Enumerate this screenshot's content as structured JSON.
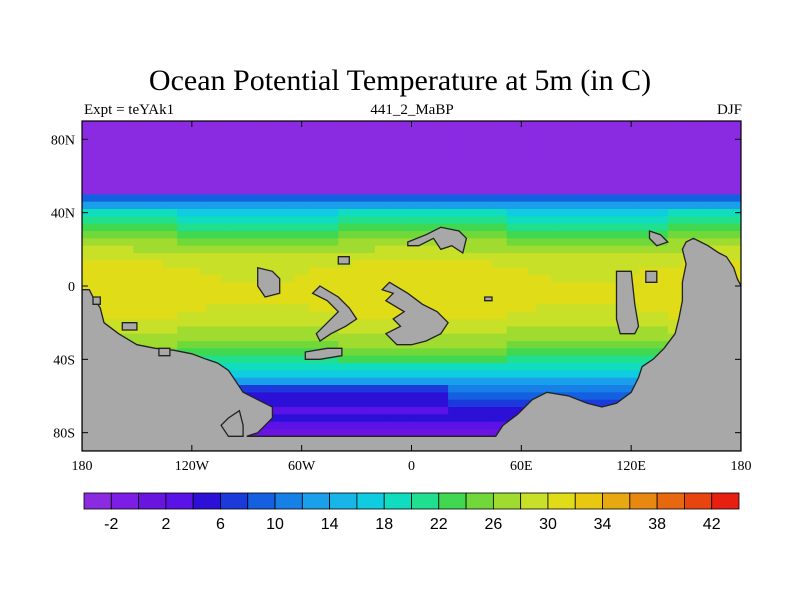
{
  "chart_data": {
    "type": "heatmap",
    "title": "Ocean Potential Temperature at 5m (in C)",
    "left_string": "Expt = teYAk1",
    "center_string": "441_2_MaBP",
    "right_string": "DJF",
    "x_ticks": [
      "180",
      "120W",
      "60W",
      "0",
      "60E",
      "120E",
      "180"
    ],
    "x_tick_values": [
      -180,
      -120,
      -60,
      0,
      60,
      120,
      180
    ],
    "y_ticks": [
      "80N",
      "40N",
      "0",
      "40S",
      "80S"
    ],
    "y_tick_values": [
      80,
      40,
      0,
      -40,
      -80
    ],
    "xlim": [
      -180,
      180
    ],
    "ylim": [
      -90,
      90
    ],
    "colorbar": {
      "levels": [
        -4,
        -2,
        0,
        2,
        4,
        6,
        8,
        10,
        12,
        14,
        16,
        18,
        20,
        22,
        24,
        26,
        28,
        30,
        32,
        34,
        36,
        38,
        40,
        42,
        44
      ],
      "labels": [
        "-2",
        "2",
        "6",
        "10",
        "14",
        "18",
        "22",
        "26",
        "30",
        "34",
        "38",
        "42"
      ],
      "label_values": [
        -2,
        2,
        6,
        10,
        14,
        18,
        22,
        26,
        30,
        34,
        38,
        42
      ],
      "colors": [
        "#8a2be2",
        "#7d1ee6",
        "#6a14e0",
        "#5a12e6",
        "#2c10d8",
        "#1a3adc",
        "#1460e0",
        "#1680e6",
        "#1aa0ea",
        "#18b6e8",
        "#10cce0",
        "#10dcc0",
        "#20e090",
        "#40d850",
        "#70d838",
        "#a0dc30",
        "#c8e028",
        "#e0dc18",
        "#e8c810",
        "#e8a810",
        "#e88810",
        "#e86810",
        "#e84410",
        "#e81e10"
      ]
    },
    "land_color": "#a8a8a8",
    "sst_profile": {
      "latitudes": [
        90,
        60,
        52,
        50,
        48,
        44,
        40,
        32,
        24,
        16,
        8,
        0,
        -8,
        -16,
        -24,
        -32,
        -40,
        -44,
        -48,
        -52,
        -56,
        -60,
        -66,
        -72,
        -80,
        -90
      ],
      "temperatures": [
        -3.5,
        -3.5,
        -3,
        2,
        8,
        13,
        18,
        22,
        26,
        29,
        30.5,
        31,
        31,
        30,
        28,
        26,
        22,
        19,
        16,
        13,
        10,
        8,
        6,
        4,
        1,
        0
      ]
    }
  }
}
